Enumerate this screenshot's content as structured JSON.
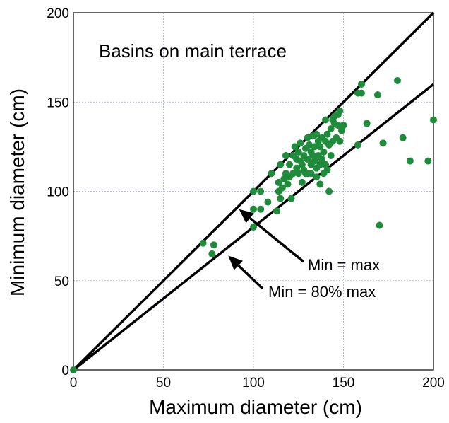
{
  "chart_data": {
    "type": "scatter",
    "title": "Basins on main terrace",
    "xlabel": "Maximum diameter  (cm)",
    "ylabel": "Minimum diameter  (cm)",
    "xlim": [
      0,
      200
    ],
    "ylim": [
      0,
      200
    ],
    "xticks": [
      "0",
      "50",
      "100",
      "150",
      "200"
    ],
    "yticks": [
      "0",
      "50",
      "100",
      "150",
      "200"
    ],
    "grid": true,
    "point_color": "#1e8c3a",
    "lines": [
      {
        "name": "Min = max",
        "slope": 1.0
      },
      {
        "name": "Min = 80% max",
        "slope": 0.8
      }
    ],
    "annotations": [
      {
        "text": "Min = max",
        "arrow_to": [
          92,
          90
        ]
      },
      {
        "text": "Min = 80% max",
        "arrow_to": [
          86,
          64
        ]
      }
    ],
    "points": [
      [
        0,
        0
      ],
      [
        72,
        71
      ],
      [
        78,
        70
      ],
      [
        77,
        65
      ],
      [
        100,
        100
      ],
      [
        100,
        90
      ],
      [
        100,
        80
      ],
      [
        104,
        100
      ],
      [
        104,
        90
      ],
      [
        108,
        94
      ],
      [
        110,
        110
      ],
      [
        113,
        89
      ],
      [
        114,
        100
      ],
      [
        114,
        105
      ],
      [
        115,
        115
      ],
      [
        115,
        96
      ],
      [
        116,
        102
      ],
      [
        117,
        107
      ],
      [
        118,
        110
      ],
      [
        118,
        120
      ],
      [
        119,
        104
      ],
      [
        120,
        115
      ],
      [
        120,
        108
      ],
      [
        121,
        96
      ],
      [
        122,
        110
      ],
      [
        122,
        120
      ],
      [
        123,
        125
      ],
      [
        124,
        118
      ],
      [
        124,
        113
      ],
      [
        125,
        122
      ],
      [
        125,
        110
      ],
      [
        126,
        117
      ],
      [
        126,
        127
      ],
      [
        127,
        105
      ],
      [
        127,
        115
      ],
      [
        128,
        120
      ],
      [
        128,
        112
      ],
      [
        129,
        124
      ],
      [
        129,
        110
      ],
      [
        130,
        130
      ],
      [
        130,
        118
      ],
      [
        130,
        110
      ],
      [
        131,
        126
      ],
      [
        132,
        122
      ],
      [
        132,
        115
      ],
      [
        132,
        110
      ],
      [
        133,
        131
      ],
      [
        133,
        120
      ],
      [
        134,
        117
      ],
      [
        134,
        125
      ],
      [
        135,
        132
      ],
      [
        135,
        113
      ],
      [
        135,
        108
      ],
      [
        136,
        120
      ],
      [
        136,
        128
      ],
      [
        137,
        125
      ],
      [
        137,
        115
      ],
      [
        137,
        104
      ],
      [
        138,
        130
      ],
      [
        138,
        118
      ],
      [
        139,
        122
      ],
      [
        139,
        110
      ],
      [
        140,
        140
      ],
      [
        140,
        128
      ],
      [
        140,
        115
      ],
      [
        141,
        112
      ],
      [
        141,
        132
      ],
      [
        142,
        126
      ],
      [
        142,
        100
      ],
      [
        143,
        135
      ],
      [
        143,
        120
      ],
      [
        144,
        140
      ],
      [
        144,
        128
      ],
      [
        145,
        138
      ],
      [
        145,
        142
      ],
      [
        146,
        130
      ],
      [
        147,
        143
      ],
      [
        147,
        137
      ],
      [
        148,
        145
      ],
      [
        148,
        128
      ],
      [
        149,
        134
      ],
      [
        150,
        137
      ],
      [
        158,
        155
      ],
      [
        158,
        126
      ],
      [
        160,
        160
      ],
      [
        160,
        155
      ],
      [
        163,
        138
      ],
      [
        169,
        154
      ],
      [
        172,
        127
      ],
      [
        170,
        81
      ],
      [
        180,
        162
      ],
      [
        183,
        130
      ],
      [
        187,
        117
      ],
      [
        197,
        117
      ],
      [
        200,
        140
      ]
    ]
  }
}
